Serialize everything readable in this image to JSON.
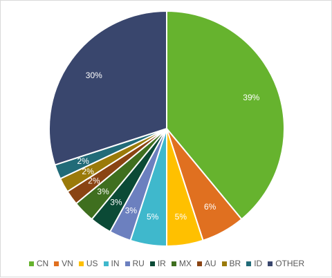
{
  "chart_data": {
    "type": "pie",
    "title": "",
    "legend_position": "bottom",
    "slices": [
      {
        "category": "CN",
        "value": 39,
        "label": "39%",
        "color": "#66b32e"
      },
      {
        "category": "VN",
        "value": 6,
        "label": "6%",
        "color": "#e07020"
      },
      {
        "category": "US",
        "value": 5,
        "label": "5%",
        "color": "#ffc000"
      },
      {
        "category": "IN",
        "value": 5,
        "label": "5%",
        "color": "#3fb8cc"
      },
      {
        "category": "RU",
        "value": 3,
        "label": "3%",
        "color": "#6c80bf"
      },
      {
        "category": "IR",
        "value": 3,
        "label": "3%",
        "color": "#0b4a36"
      },
      {
        "category": "MX",
        "value": 3,
        "label": "3%",
        "color": "#3f6f1f"
      },
      {
        "category": "AU",
        "value": 2,
        "label": "2%",
        "color": "#8a4413"
      },
      {
        "category": "BR",
        "value": 2,
        "label": "2%",
        "color": "#9a7a0a"
      },
      {
        "category": "ID",
        "value": 2,
        "label": "2%",
        "color": "#216b78"
      },
      {
        "category": "OTHER",
        "value": 30,
        "label": "30%",
        "color": "#39466d"
      }
    ]
  }
}
